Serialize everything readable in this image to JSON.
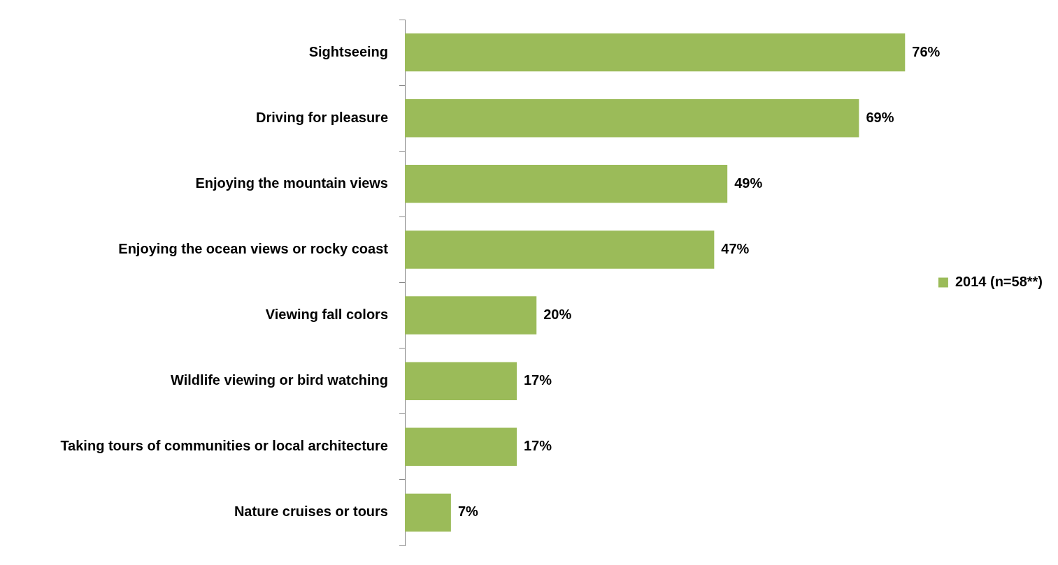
{
  "chart_data": {
    "type": "bar",
    "orientation": "horizontal",
    "categories": [
      "Sightseeing",
      "Driving for pleasure",
      "Enjoying the mountain views",
      "Enjoying the ocean views or rocky coast",
      "Viewing fall colors",
      "Wildlife viewing or bird watching",
      "Taking tours of communities or local architecture",
      "Nature cruises or tours"
    ],
    "series": [
      {
        "name": "2014 (n=58**)",
        "color": "#9bbb59",
        "values": [
          76,
          69,
          49,
          47,
          20,
          17,
          17,
          7
        ],
        "value_labels": [
          "76%",
          "69%",
          "49%",
          "47%",
          "20%",
          "17%",
          "17%",
          "7%"
        ]
      }
    ],
    "legend": "right"
  }
}
